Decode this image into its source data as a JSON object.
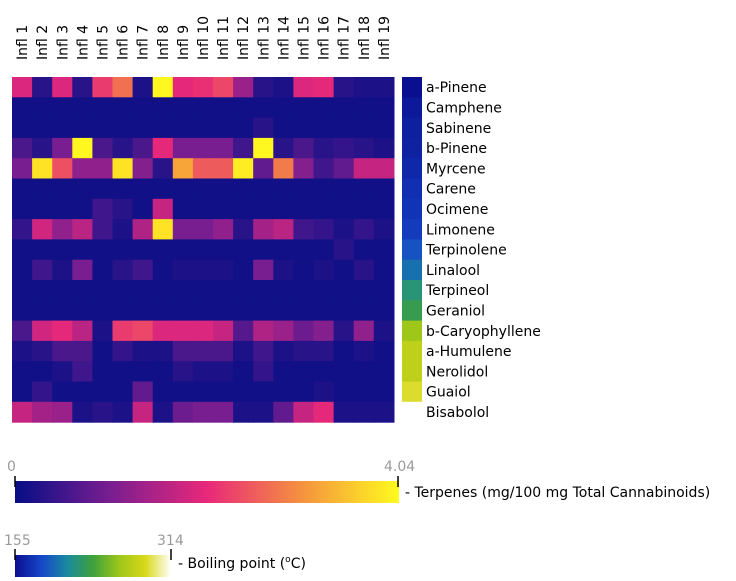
{
  "chart_data": [
    {
      "type": "heatmap",
      "title": "",
      "columns": [
        "Infl 1",
        "Infl 2",
        "Infl 3",
        "Infl 4",
        "Infl 5",
        "Infl 6",
        "Infl 7",
        "Infl 8",
        "Infl 9",
        "Infl 10",
        "Infl 11",
        "Infl 12",
        "Infl 13",
        "Infl 14",
        "Infl 15",
        "Infl 16",
        "Infl 17",
        "Infl 18",
        "Infl 19"
      ],
      "rows": [
        "a-Pinene",
        "Camphene",
        "Sabinene",
        "b-Pinene",
        "Myrcene",
        "Carene",
        "Ocimene",
        "Limonene",
        "Terpinolene",
        "Linalool",
        "Terpineol",
        "Geraniol",
        "b-Caryophyllene",
        "a-Humulene",
        "Nerolidol",
        "Guaiol",
        "Bisabolol"
      ],
      "values": [
        [
          1.9,
          0.3,
          1.9,
          0.3,
          2.2,
          2.7,
          0.2,
          4.0,
          2.0,
          2.1,
          2.3,
          1.3,
          0.3,
          0.2,
          1.9,
          2.0,
          0.3,
          0.2,
          0.2
        ],
        [
          0.1,
          0.1,
          0.1,
          0.1,
          0.1,
          0.1,
          0.1,
          0.1,
          0.1,
          0.1,
          0.1,
          0.1,
          0.1,
          0.1,
          0.1,
          0.1,
          0.1,
          0.1,
          0.1
        ],
        [
          0.1,
          0.1,
          0.1,
          0.1,
          0.1,
          0.1,
          0.1,
          0.1,
          0.1,
          0.1,
          0.1,
          0.1,
          0.3,
          0.1,
          0.1,
          0.1,
          0.1,
          0.1,
          0.1
        ],
        [
          0.6,
          0.3,
          1.0,
          4.0,
          0.6,
          0.3,
          0.6,
          2.0,
          1.0,
          1.0,
          1.0,
          0.5,
          4.0,
          0.3,
          0.6,
          0.3,
          0.4,
          0.3,
          0.2
        ],
        [
          1.0,
          3.8,
          2.4,
          1.2,
          1.2,
          3.8,
          1.1,
          0.3,
          3.2,
          2.5,
          2.5,
          3.9,
          0.8,
          2.8,
          1.1,
          0.5,
          0.8,
          1.7,
          1.7
        ],
        [
          0.1,
          0.1,
          0.1,
          0.1,
          0.1,
          0.1,
          0.1,
          0.1,
          0.1,
          0.1,
          0.1,
          0.1,
          0.1,
          0.1,
          0.1,
          0.1,
          0.1,
          0.1,
          0.1
        ],
        [
          0.1,
          0.1,
          0.1,
          0.1,
          0.5,
          0.3,
          0.1,
          1.7,
          0.1,
          0.1,
          0.1,
          0.1,
          0.1,
          0.1,
          0.1,
          0.1,
          0.1,
          0.1,
          0.1
        ],
        [
          0.4,
          1.8,
          1.2,
          1.6,
          0.5,
          0.2,
          1.5,
          3.8,
          1.0,
          1.0,
          1.2,
          0.3,
          1.4,
          1.6,
          0.5,
          0.4,
          0.2,
          0.4,
          0.2
        ],
        [
          0.1,
          0.1,
          0.1,
          0.1,
          0.1,
          0.1,
          0.1,
          0.1,
          0.1,
          0.1,
          0.1,
          0.1,
          0.1,
          0.1,
          0.1,
          0.1,
          0.3,
          0.1,
          0.1
        ],
        [
          0.1,
          0.5,
          0.2,
          1.0,
          0.1,
          0.3,
          0.5,
          0.1,
          0.2,
          0.2,
          0.2,
          0.1,
          1.0,
          0.2,
          0.1,
          0.2,
          0.1,
          0.3,
          0.1
        ],
        [
          0.1,
          0.1,
          0.1,
          0.1,
          0.1,
          0.1,
          0.1,
          0.1,
          0.1,
          0.1,
          0.1,
          0.1,
          0.1,
          0.1,
          0.1,
          0.1,
          0.1,
          0.1,
          0.1
        ],
        [
          0.1,
          0.1,
          0.1,
          0.1,
          0.1,
          0.1,
          0.1,
          0.1,
          0.1,
          0.1,
          0.1,
          0.1,
          0.1,
          0.1,
          0.1,
          0.1,
          0.1,
          0.1,
          0.1
        ],
        [
          0.6,
          1.8,
          2.0,
          1.6,
          0.2,
          2.2,
          2.3,
          1.9,
          1.9,
          1.9,
          1.7,
          0.7,
          1.5,
          1.3,
          0.9,
          1.1,
          0.3,
          1.2,
          0.2
        ],
        [
          0.2,
          0.3,
          0.6,
          0.6,
          0.1,
          0.4,
          0.2,
          0.2,
          0.6,
          0.6,
          0.6,
          0.2,
          0.5,
          0.2,
          0.3,
          0.3,
          0.1,
          0.2,
          0.1
        ],
        [
          0.1,
          0.1,
          0.2,
          0.5,
          0.1,
          0.1,
          0.1,
          0.1,
          0.3,
          0.2,
          0.2,
          0.1,
          0.4,
          0.1,
          0.1,
          0.1,
          0.1,
          0.1,
          0.1
        ],
        [
          0.1,
          0.4,
          0.1,
          0.1,
          0.1,
          0.1,
          0.8,
          0.1,
          0.1,
          0.1,
          0.1,
          0.1,
          0.1,
          0.1,
          0.1,
          0.2,
          0.1,
          0.1,
          0.1
        ],
        [
          1.7,
          1.4,
          1.3,
          0.2,
          0.3,
          0.2,
          1.7,
          0.2,
          0.9,
          1.0,
          1.0,
          0.2,
          0.2,
          0.8,
          1.7,
          2.0,
          0.2,
          0.2,
          0.2
        ]
      ],
      "colorbar": {
        "label": "- Terpenes (mg/100 mg Total Cannabinoids)",
        "min_label": "0",
        "max_label": "4.04",
        "min": 0,
        "max": 4.04,
        "colors": [
          "#060e86",
          "#7a1e90",
          "#e8287a",
          "#f5933e",
          "#fffb1e"
        ]
      }
    },
    {
      "type": "heatmap",
      "title": "",
      "rows": [
        "a-Pinene",
        "Camphene",
        "Sabinene",
        "b-Pinene",
        "Myrcene",
        "Carene",
        "Ocimene",
        "Limonene",
        "Terpinolene",
        "Linalool",
        "Terpineol",
        "Geraniol",
        "b-Caryophyllene",
        "a-Humulene",
        "Nerolidol",
        "Guaiol",
        "Bisabolol"
      ],
      "values": [
        155,
        160,
        163,
        164,
        167,
        171,
        173,
        176,
        186,
        198,
        219,
        229,
        262,
        276,
        276,
        290,
        314
      ],
      "colorbar": {
        "label": "- Boiling point (",
        "label_sup": "o",
        "label_end": "C)",
        "min_label": "155",
        "max_label": "314",
        "min": 155,
        "max": 314,
        "colors": [
          "#0a0f8f",
          "#1546c8",
          "#1a8aa0",
          "#3ea13a",
          "#9cc61a",
          "#d8d818",
          "#ffffff"
        ]
      }
    }
  ]
}
